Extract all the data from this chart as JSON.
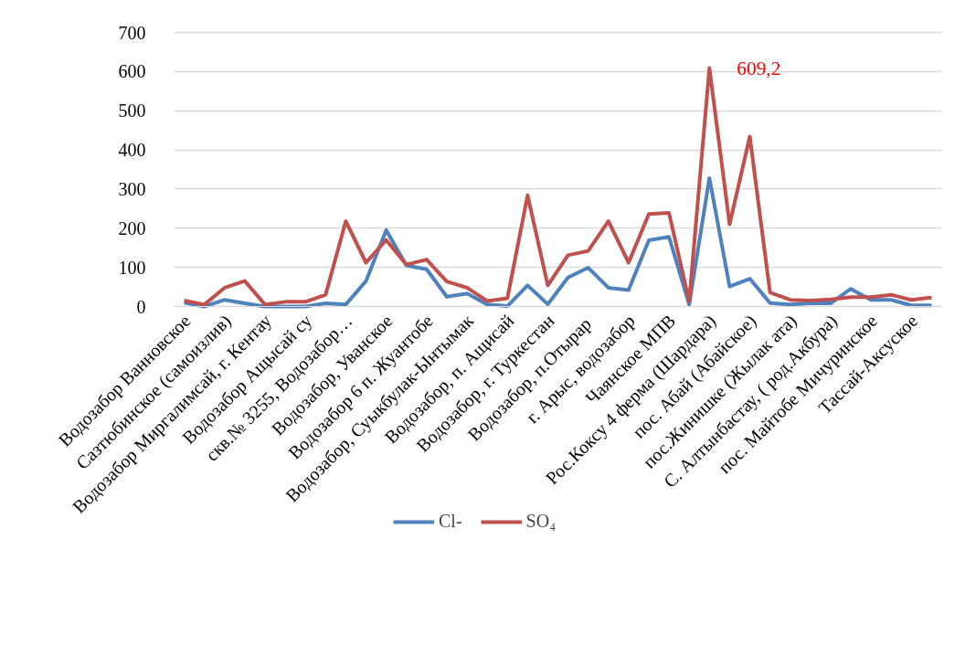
{
  "chart_data": {
    "type": "line",
    "categories": [
      "Водозабор Ванновское",
      null,
      "Сазтюбинское (самоизлив)",
      null,
      "Водозабор Миргалимсай, г. Кентау",
      null,
      "Водозабор Ащысай су",
      null,
      "скв.№ 3255, Водозабор…",
      null,
      "Водозабор, Уванское",
      null,
      "Водозабор 6 п. Жуантобе",
      null,
      "Водозабор, Суыкбулак-Ынтымак",
      null,
      "Водозабор, п. Ащисай",
      null,
      "Водозабор, г. Туркестан",
      null,
      "Водозабор,  п.Отырар",
      null,
      "г. Арыс, водозабор",
      null,
      "Чаянское МПВ",
      null,
      "Рос.Коксу 4 ферма (Шардара)",
      null,
      "пос. Абай (Абайское)",
      null,
      "пос.Жинишке (Жылак ата)",
      null,
      "С. Алтынбастау, ( род.Акбура)",
      null,
      "пос. Майтобе Мичуринское",
      null,
      "Тассай-Аксуское",
      null
    ],
    "series": [
      {
        "name": "Cl-",
        "color": "#4f81bd",
        "values": [
          10,
          0,
          17,
          8,
          0,
          0,
          0,
          8,
          5,
          65,
          195,
          105,
          95,
          25,
          33,
          5,
          1,
          54,
          6,
          74,
          99,
          48,
          42,
          169,
          178,
          5,
          328,
          51,
          71,
          9,
          5,
          8,
          8,
          45,
          17,
          17,
          3,
          3
        ]
      },
      {
        "name": "SO₄",
        "color": "#c0504d",
        "values": [
          15,
          5,
          48,
          65,
          5,
          12,
          12,
          30,
          218,
          112,
          170,
          107,
          120,
          64,
          48,
          14,
          21,
          284,
          54,
          131,
          142,
          218,
          112,
          236,
          239,
          13,
          609.2,
          210,
          434,
          36,
          17,
          15,
          18,
          24,
          24,
          30,
          17,
          23
        ]
      }
    ],
    "ylim": [
      0,
      700
    ],
    "yticks": [
      0,
      100,
      200,
      300,
      400,
      500,
      600,
      700
    ],
    "grid": "y",
    "legend": "bottom",
    "line_style": "solid",
    "marker": "none",
    "annotations": [
      "609,2"
    ]
  }
}
